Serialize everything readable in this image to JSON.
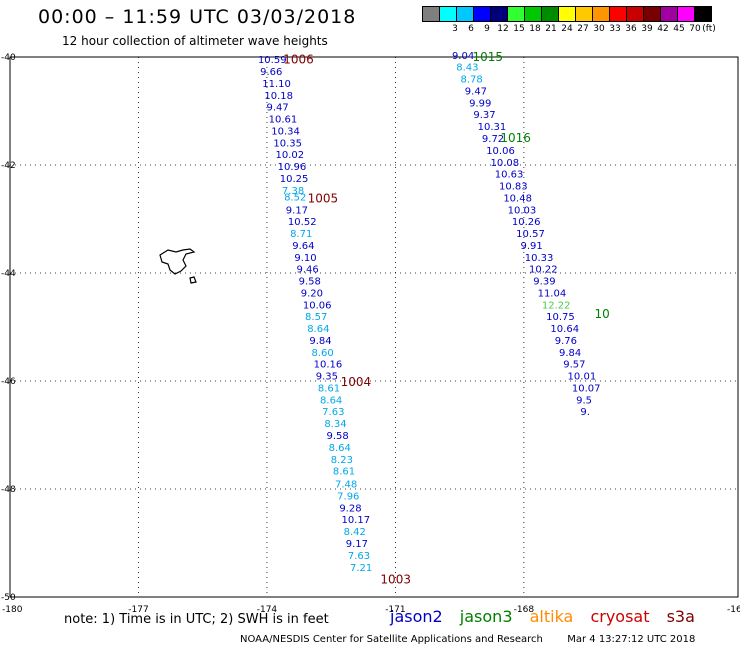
{
  "header": {
    "title": "00:00 – 11:59 UTC 03/03/2018",
    "subtitle": "12 hour collection of altimeter wave heights"
  },
  "legend": {
    "unit": "(ft)",
    "bins": [
      {
        "label": "",
        "color": "#7f7f7f"
      },
      {
        "label": "3",
        "color": "#00ffff"
      },
      {
        "label": "6",
        "color": "#00c8ff"
      },
      {
        "label": "9",
        "color": "#0000ff"
      },
      {
        "label": "12",
        "color": "#00007f"
      },
      {
        "label": "15",
        "color": "#32ff32"
      },
      {
        "label": "18",
        "color": "#00c800"
      },
      {
        "label": "21",
        "color": "#008c00"
      },
      {
        "label": "24",
        "color": "#ffff00"
      },
      {
        "label": "27",
        "color": "#ffc800"
      },
      {
        "label": "30",
        "color": "#ff9600"
      },
      {
        "label": "33",
        "color": "#ff0000"
      },
      {
        "label": "36",
        "color": "#c80000"
      },
      {
        "label": "39",
        "color": "#780000"
      },
      {
        "label": "42",
        "color": "#a000a0"
      },
      {
        "label": "45",
        "color": "#ff00ff"
      },
      {
        "label": "70",
        "color": "#000000"
      }
    ]
  },
  "axes": {
    "lon_labels": [
      "-180",
      "-177",
      "-174",
      "-171",
      "-168",
      "-16"
    ],
    "lat_labels": [
      "-40",
      "-42",
      "-44",
      "-46",
      "-48",
      "-50"
    ]
  },
  "colors": {
    "jason2": "#0000c8",
    "jason3": "#008000",
    "altika": "#ff8c00",
    "cryosat": "#cc0000",
    "s3a": "#800000",
    "light": "#00a8e8",
    "lightgreen": "#4ccc4c"
  },
  "chart_data": {
    "type": "map",
    "lon_range": [
      -180,
      -163
    ],
    "lat_range": [
      -50,
      -40
    ],
    "track_left": [
      {
        "lat": -40.04,
        "lon": -174.21,
        "value": "10.59",
        "color": "jason2"
      },
      {
        "lat": -40.26,
        "lon": -174.16,
        "value": "9.66",
        "color": "jason2"
      },
      {
        "lat": -40.48,
        "lon": -174.11,
        "value": "11.10",
        "color": "jason2"
      },
      {
        "lat": -40.7,
        "lon": -174.06,
        "value": "10.18",
        "color": "jason2"
      },
      {
        "lat": -40.92,
        "lon": -174.01,
        "value": "9.47",
        "color": "jason2"
      },
      {
        "lat": -41.14,
        "lon": -173.96,
        "value": "10.61",
        "color": "jason2"
      },
      {
        "lat": -41.36,
        "lon": -173.9,
        "value": "10.34",
        "color": "jason2"
      },
      {
        "lat": -41.58,
        "lon": -173.85,
        "value": "10.35",
        "color": "jason2"
      },
      {
        "lat": -41.8,
        "lon": -173.8,
        "value": "10.02",
        "color": "jason2"
      },
      {
        "lat": -42.02,
        "lon": -173.75,
        "value": "10.96",
        "color": "jason2"
      },
      {
        "lat": -42.24,
        "lon": -173.7,
        "value": "10.25",
        "color": "jason2"
      },
      {
        "lat": -42.46,
        "lon": -173.65,
        "value": "7.38",
        "color": "light"
      },
      {
        "lat": -42.58,
        "lon": -173.6,
        "value": "8.52",
        "color": "light"
      },
      {
        "lat": -42.82,
        "lon": -173.56,
        "value": "9.17",
        "color": "jason2"
      },
      {
        "lat": -43.04,
        "lon": -173.51,
        "value": "10.52",
        "color": "jason2"
      },
      {
        "lat": -43.26,
        "lon": -173.46,
        "value": "8.71",
        "color": "light"
      },
      {
        "lat": -43.48,
        "lon": -173.41,
        "value": "9.64",
        "color": "jason2"
      },
      {
        "lat": -43.7,
        "lon": -173.36,
        "value": "9.10",
        "color": "jason2"
      },
      {
        "lat": -43.92,
        "lon": -173.31,
        "value": "9.46",
        "color": "jason2"
      },
      {
        "lat": -44.14,
        "lon": -173.26,
        "value": "9.58",
        "color": "jason2"
      },
      {
        "lat": -44.36,
        "lon": -173.21,
        "value": "9.20",
        "color": "jason2"
      },
      {
        "lat": -44.58,
        "lon": -173.16,
        "value": "10.06",
        "color": "jason2"
      },
      {
        "lat": -44.8,
        "lon": -173.11,
        "value": "8.57",
        "color": "light"
      },
      {
        "lat": -45.02,
        "lon": -173.06,
        "value": "8.64",
        "color": "light"
      },
      {
        "lat": -45.24,
        "lon": -173.01,
        "value": "9.84",
        "color": "jason2"
      },
      {
        "lat": -45.46,
        "lon": -172.96,
        "value": "8.60",
        "color": "light"
      },
      {
        "lat": -45.68,
        "lon": -172.91,
        "value": "10.16",
        "color": "jason2"
      },
      {
        "lat": -45.9,
        "lon": -172.86,
        "value": "9.35",
        "color": "jason2"
      },
      {
        "lat": -46.12,
        "lon": -172.81,
        "value": "8.61",
        "color": "light"
      },
      {
        "lat": -46.34,
        "lon": -172.76,
        "value": "8.64",
        "color": "light"
      },
      {
        "lat": -46.56,
        "lon": -172.71,
        "value": "7.63",
        "color": "light"
      },
      {
        "lat": -46.78,
        "lon": -172.66,
        "value": "8.34",
        "color": "light"
      },
      {
        "lat": -47.0,
        "lon": -172.61,
        "value": "9.58",
        "color": "jason2"
      },
      {
        "lat": -47.22,
        "lon": -172.56,
        "value": "8.64",
        "color": "light"
      },
      {
        "lat": -47.44,
        "lon": -172.51,
        "value": "8.23",
        "color": "light"
      },
      {
        "lat": -47.66,
        "lon": -172.46,
        "value": "8.61",
        "color": "light"
      },
      {
        "lat": -47.9,
        "lon": -172.41,
        "value": "7.48",
        "color": "light"
      },
      {
        "lat": -48.12,
        "lon": -172.36,
        "value": "7.96",
        "color": "light"
      },
      {
        "lat": -48.34,
        "lon": -172.31,
        "value": "9.28",
        "color": "jason2"
      },
      {
        "lat": -48.56,
        "lon": -172.26,
        "value": "10.17",
        "color": "jason2"
      },
      {
        "lat": -48.78,
        "lon": -172.21,
        "value": "8.42",
        "color": "light"
      },
      {
        "lat": -49.0,
        "lon": -172.16,
        "value": "9.17",
        "color": "jason2"
      },
      {
        "lat": -49.22,
        "lon": -172.11,
        "value": "7.63",
        "color": "light"
      },
      {
        "lat": -49.44,
        "lon": -172.06,
        "value": "7.21",
        "color": "light"
      }
    ],
    "track_right": [
      {
        "lat": -39.96,
        "lon": -169.68,
        "value": "9.04",
        "color": "jason2"
      },
      {
        "lat": -40.18,
        "lon": -169.58,
        "value": "8.43",
        "color": "light"
      },
      {
        "lat": -40.4,
        "lon": -169.48,
        "value": "8.78",
        "color": "light"
      },
      {
        "lat": -40.62,
        "lon": -169.38,
        "value": "9.47",
        "color": "jason2"
      },
      {
        "lat": -40.84,
        "lon": -169.28,
        "value": "9.99",
        "color": "jason2"
      },
      {
        "lat": -41.06,
        "lon": -169.18,
        "value": "9.37",
        "color": "jason2"
      },
      {
        "lat": -41.28,
        "lon": -169.08,
        "value": "10.31",
        "color": "jason2"
      },
      {
        "lat": -41.5,
        "lon": -168.98,
        "value": "9.72",
        "color": "jason2"
      },
      {
        "lat": -41.72,
        "lon": -168.88,
        "value": "10.06",
        "color": "jason2"
      },
      {
        "lat": -41.94,
        "lon": -168.78,
        "value": "10.08",
        "color": "jason2"
      },
      {
        "lat": -42.16,
        "lon": -168.68,
        "value": "10.63",
        "color": "jason2"
      },
      {
        "lat": -42.38,
        "lon": -168.58,
        "value": "10.83",
        "color": "jason2"
      },
      {
        "lat": -42.6,
        "lon": -168.48,
        "value": "10.48",
        "color": "jason2"
      },
      {
        "lat": -42.82,
        "lon": -168.38,
        "value": "10.03",
        "color": "jason2"
      },
      {
        "lat": -43.04,
        "lon": -168.28,
        "value": "10.26",
        "color": "jason2"
      },
      {
        "lat": -43.26,
        "lon": -168.18,
        "value": "10.57",
        "color": "jason2"
      },
      {
        "lat": -43.48,
        "lon": -168.08,
        "value": "9.91",
        "color": "jason2"
      },
      {
        "lat": -43.7,
        "lon": -167.98,
        "value": "10.33",
        "color": "jason2"
      },
      {
        "lat": -43.92,
        "lon": -167.88,
        "value": "10.22",
        "color": "jason2"
      },
      {
        "lat": -44.14,
        "lon": -167.78,
        "value": "9.39",
        "color": "jason2"
      },
      {
        "lat": -44.36,
        "lon": -167.68,
        "value": "11.04",
        "color": "jason2"
      },
      {
        "lat": -44.58,
        "lon": -167.58,
        "value": "12.22",
        "color": "lightgreen"
      },
      {
        "lat": -44.8,
        "lon": -167.48,
        "value": "10.75",
        "color": "jason2"
      },
      {
        "lat": -45.02,
        "lon": -167.38,
        "value": "10.64",
        "color": "jason2"
      },
      {
        "lat": -45.24,
        "lon": -167.28,
        "value": "9.76",
        "color": "jason2"
      },
      {
        "lat": -45.46,
        "lon": -167.18,
        "value": "9.84",
        "color": "jason2"
      },
      {
        "lat": -45.68,
        "lon": -167.08,
        "value": "9.57",
        "color": "jason2"
      },
      {
        "lat": -45.9,
        "lon": -166.98,
        "value": "10.01",
        "color": "jason2"
      },
      {
        "lat": -46.12,
        "lon": -166.88,
        "value": "10.07",
        "color": "jason2"
      },
      {
        "lat": -46.34,
        "lon": -166.78,
        "value": "9.5",
        "color": "jason2"
      },
      {
        "lat": -46.56,
        "lon": -166.68,
        "value": "9.",
        "color": "jason2"
      }
    ],
    "time_labels": [
      {
        "lat": -40.05,
        "lon": -173.62,
        "value": "1006",
        "color": "s3a"
      },
      {
        "lat": -40.0,
        "lon": -169.2,
        "value": "1015",
        "color": "jason3"
      },
      {
        "lat": -41.5,
        "lon": -168.55,
        "value": "1016",
        "color": "jason3"
      },
      {
        "lat": -42.62,
        "lon": -173.05,
        "value": "1005",
        "color": "s3a"
      },
      {
        "lat": -46.02,
        "lon": -172.28,
        "value": "1004",
        "color": "s3a"
      },
      {
        "lat": -49.68,
        "lon": -171.35,
        "value": "1003",
        "color": "s3a"
      },
      {
        "lat": -44.76,
        "lon": -166.35,
        "value": "10",
        "color": "jason3"
      }
    ]
  },
  "note": "note: 1) Time is in UTC; 2) SWH is in feet",
  "satellites": {
    "jason2": "jason2",
    "jason3": "jason3",
    "altika": "altika",
    "cryosat": "cryosat",
    "s3a": "s3a"
  },
  "footer": {
    "credit": "NOAA/NESDIS Center for Satellite Applications and Research",
    "timestamp": "Mar  4 13:27:12 UTC 2018"
  }
}
